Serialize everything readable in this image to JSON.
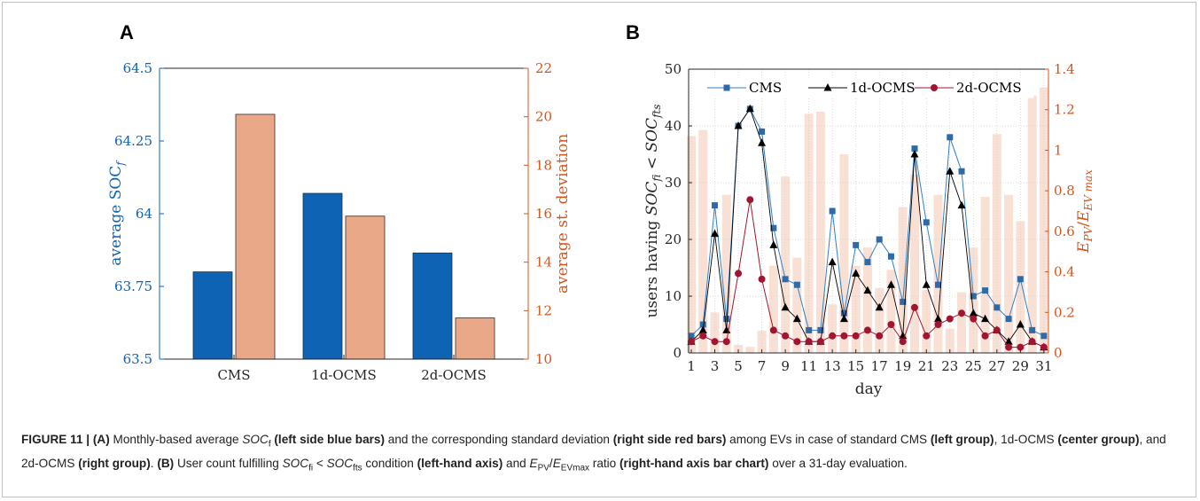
{
  "panels": {
    "a": "A",
    "b": "B"
  },
  "colors": {
    "blue": "#0e63b4",
    "orange": "#e9a888",
    "orange_axis": "#d95319",
    "light_orange": "#f8ddd0",
    "cms_line": "#2f7fc8",
    "ocms2_line": "#a2142f"
  },
  "chart_data": [
    {
      "type": "bar",
      "panel": "A",
      "categories": [
        "CMS",
        "1d-OCMS",
        "2d-OCMS"
      ],
      "series": [
        {
          "values": [
            63.8,
            64.07,
            63.865
          ],
          "axis": "left"
        },
        {
          "values": [
            20.1,
            15.9,
            11.7
          ],
          "axis": "right"
        }
      ],
      "ylabel": "average SOC",
      "ylabel_sub": "f",
      "y2label": "average st. deviation",
      "ylim": [
        63.5,
        64.5
      ],
      "y2lim": [
        10,
        22
      ],
      "yticks": [
        "63.5",
        "63.75",
        "64",
        "64.25",
        "64.5"
      ],
      "y2ticks": [
        "10",
        "12",
        "14",
        "16",
        "18",
        "20",
        "22"
      ]
    },
    {
      "type": "line",
      "panel": "B",
      "x": [
        1,
        2,
        3,
        4,
        5,
        6,
        7,
        8,
        9,
        10,
        11,
        12,
        13,
        14,
        15,
        16,
        17,
        18,
        19,
        20,
        21,
        22,
        23,
        24,
        25,
        26,
        27,
        28,
        29,
        30,
        31
      ],
      "series": [
        {
          "name": "CMS",
          "values": [
            3,
            5,
            26,
            6,
            40,
            43,
            39,
            22,
            13,
            12,
            4,
            4,
            25,
            7,
            19,
            16,
            20,
            17,
            9,
            36,
            23,
            12,
            38,
            32,
            10,
            11,
            8,
            6,
            13,
            4,
            3
          ]
        },
        {
          "name": "1d-OCMS",
          "values": [
            2,
            4,
            21,
            4,
            40,
            43,
            37,
            19,
            8,
            6,
            2,
            2,
            16,
            6,
            14,
            11,
            8,
            12,
            3,
            35,
            12,
            6,
            32,
            26,
            7,
            6,
            4,
            2,
            5,
            2,
            1
          ]
        },
        {
          "name": "2d-OCMS",
          "values": [
            2,
            3,
            2,
            2,
            14,
            27,
            13,
            4,
            3,
            2,
            2,
            2,
            3,
            3,
            3,
            4,
            3,
            5,
            2,
            8,
            3,
            5,
            6,
            7,
            6,
            3,
            4,
            1,
            1,
            2,
            1
          ]
        }
      ],
      "bars": {
        "values": [
          1.07,
          1.1,
          0.2,
          0.78,
          0.04,
          0.03,
          0.11,
          0.43,
          0.87,
          0.47,
          1.18,
          1.19,
          0.24,
          0.98,
          0.43,
          0.52,
          0.32,
          0.41,
          0.72,
          0.88,
          0.31,
          0.78,
          0.12,
          0.3,
          0.52,
          0.77,
          1.08,
          0.78,
          0.65,
          1.27,
          1.31
        ],
        "axis": "right"
      },
      "xlabel": "day",
      "ylabel_parts": [
        "users having ",
        "SOC",
        "fi",
        " < ",
        "SOC",
        "fts"
      ],
      "y2label_parts": [
        "E",
        "PV",
        "/",
        "E",
        "EV max"
      ],
      "ylim": [
        0,
        50
      ],
      "y2lim": [
        0,
        1.4
      ],
      "yticks": [
        "0",
        "10",
        "20",
        "30",
        "40",
        "50"
      ],
      "y2ticks": [
        "0",
        "0.2",
        "0.4",
        "0.6",
        "0.8",
        "1",
        "1.2",
        "1.4"
      ],
      "xticks": [
        "1",
        "3",
        "5",
        "7",
        "9",
        "11",
        "13",
        "15",
        "17",
        "19",
        "21",
        "23",
        "25",
        "27",
        "29",
        "31"
      ],
      "legend": "top"
    }
  ],
  "caption": {
    "label": "FIGURE 11 | ",
    "p1": "(A)",
    "t1": " Monthly-based average ",
    "soc": "SOC",
    "soc_sub": "f",
    "p2": " (left side blue bars)",
    "t2": " and the corresponding standard deviation ",
    "p3": "(right side red bars)",
    "t3": " among EVs in case of standard CMS ",
    "p4": "(left group)",
    "t4": ", 1d-OCMS ",
    "p5": "(center group)",
    "t5": ", and 2d-OCMS ",
    "p6": "(right group)",
    "t6": ". ",
    "p7": "(B)",
    "t7": " User count fulfilling ",
    "soc2": "SOC",
    "soc2_sub": "fi",
    "lt": " < ",
    "soc3": "SOC",
    "soc3_sub": "fts",
    "t8": " condition ",
    "p8": "(left-hand axis)",
    "t9": " and ",
    "e1": "E",
    "e1_sub": "PV",
    "slash": "/",
    "e2": "E",
    "e2_sub": "EVmax",
    "t10": " ratio ",
    "p9": "(right-hand axis bar chart)",
    "t11": " over a 31-day evaluation."
  }
}
